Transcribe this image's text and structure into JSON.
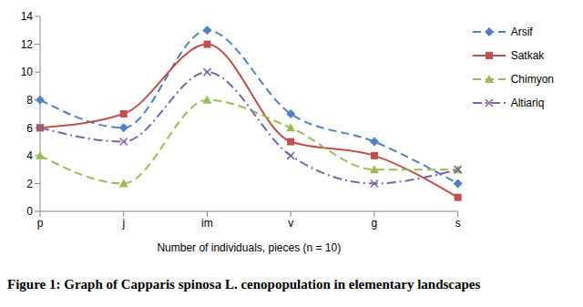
{
  "chart_data": {
    "type": "line",
    "title": "Figure 1: Graph of Capparis spinosa L. cenopopulation in elementary landscapes",
    "x_label": "Number of individuals, pieces (n = 10)",
    "categories": [
      "p",
      "j",
      "im",
      "v",
      "g",
      "s"
    ],
    "series": [
      {
        "name": "Arsif",
        "color": "#4f81bd",
        "marker": "diamond",
        "line_style": "dashed",
        "values": [
          8,
          6,
          13,
          7,
          5,
          2
        ]
      },
      {
        "name": "Satkak",
        "color": "#c0504d",
        "marker": "square",
        "line_style": "solid",
        "values": [
          6,
          7,
          12,
          5,
          4,
          1
        ]
      },
      {
        "name": "Chimyon",
        "color": "#9bbb59",
        "marker": "triangle",
        "line_style": "dashed",
        "values": [
          4,
          2,
          8,
          6,
          3,
          3
        ]
      },
      {
        "name": "Altiariq",
        "color": "#8064a2",
        "marker": "x",
        "line_style": "dash-dot",
        "values": [
          6,
          5,
          10,
          4,
          2,
          3
        ]
      }
    ],
    "ylim": [
      0,
      14
    ],
    "yticks": [
      0,
      2,
      4,
      6,
      8,
      10,
      12,
      14
    ],
    "grid": false,
    "legend": "right"
  }
}
